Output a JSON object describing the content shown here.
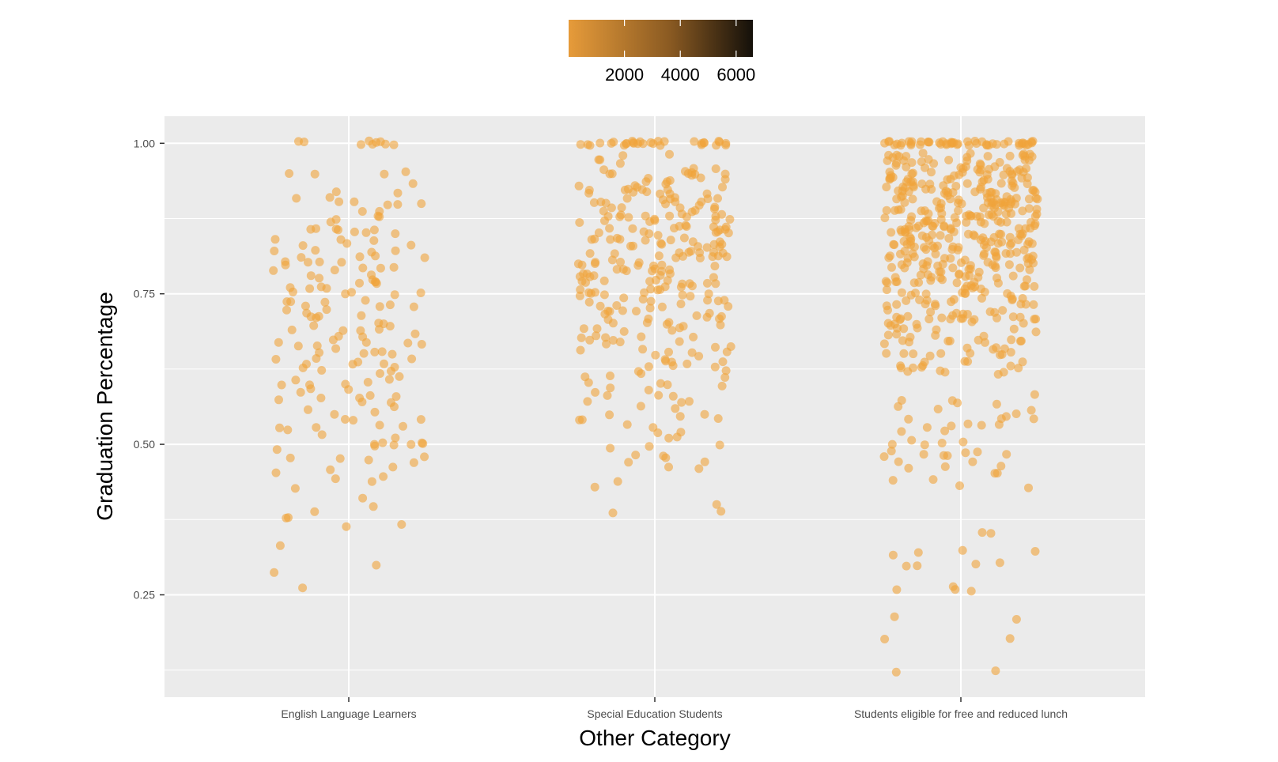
{
  "chart_data": {
    "type": "scatter",
    "subtype": "jitter-strip",
    "xlabel": "Other Category",
    "ylabel": "Graduation Percentage",
    "categories": [
      "English Language Learners",
      "Special Education Students",
      "Students eligible for free and reduced lunch"
    ],
    "y_ticks": [
      0.25,
      0.5,
      0.75,
      1.0
    ],
    "y_tick_labels": [
      "0.25",
      "0.50",
      "0.75",
      "1.00"
    ],
    "ylim": [
      0.08,
      1.045
    ],
    "grid": true,
    "panel_background": "#ebebeb",
    "point_color": "#f0a43a",
    "point_opacity": 0.6,
    "legend": {
      "type": "colorbar",
      "position": "top",
      "ticks": [
        2000,
        4000,
        6000
      ],
      "tick_labels": [
        "2000",
        "4000",
        "6000"
      ],
      "range": [
        0,
        6600
      ],
      "low_color": "#e69b3a",
      "high_color": "#14100a"
    },
    "series": [
      {
        "category": "English Language Learners",
        "y": [
          1.0,
          1.0,
          1.0,
          1.0,
          1.0,
          1.0,
          1.0,
          1.0,
          1.0,
          0.95,
          0.95,
          0.95,
          0.95,
          0.93,
          0.92,
          0.92,
          0.91,
          0.91,
          0.9,
          0.9,
          0.9,
          0.9,
          0.9,
          0.89,
          0.89,
          0.88,
          0.88,
          0.87,
          0.87,
          0.86,
          0.86,
          0.86,
          0.86,
          0.86,
          0.85,
          0.85,
          0.85,
          0.84,
          0.84,
          0.84,
          0.83,
          0.83,
          0.83,
          0.82,
          0.82,
          0.82,
          0.82,
          0.81,
          0.81,
          0.81,
          0.81,
          0.8,
          0.8,
          0.8,
          0.8,
          0.8,
          0.79,
          0.79,
          0.79,
          0.79,
          0.79,
          0.78,
          0.78,
          0.78,
          0.77,
          0.77,
          0.77,
          0.77,
          0.77,
          0.76,
          0.76,
          0.76,
          0.76,
          0.75,
          0.75,
          0.75,
          0.75,
          0.75,
          0.74,
          0.74,
          0.74,
          0.74,
          0.73,
          0.73,
          0.73,
          0.73,
          0.72,
          0.72,
          0.72,
          0.71,
          0.71,
          0.71,
          0.71,
          0.7,
          0.7,
          0.7,
          0.7,
          0.69,
          0.69,
          0.69,
          0.69,
          0.68,
          0.68,
          0.68,
          0.67,
          0.67,
          0.67,
          0.67,
          0.67,
          0.66,
          0.66,
          0.66,
          0.65,
          0.65,
          0.65,
          0.65,
          0.65,
          0.64,
          0.64,
          0.64,
          0.64,
          0.63,
          0.63,
          0.63,
          0.63,
          0.63,
          0.62,
          0.62,
          0.62,
          0.61,
          0.61,
          0.61,
          0.6,
          0.6,
          0.6,
          0.6,
          0.59,
          0.59,
          0.59,
          0.58,
          0.58,
          0.58,
          0.58,
          0.57,
          0.57,
          0.57,
          0.56,
          0.56,
          0.55,
          0.55,
          0.54,
          0.54,
          0.54,
          0.53,
          0.53,
          0.53,
          0.53,
          0.52,
          0.52,
          0.51,
          0.5,
          0.5,
          0.5,
          0.5,
          0.5,
          0.5,
          0.5,
          0.49,
          0.48,
          0.48,
          0.48,
          0.47,
          0.47,
          0.46,
          0.46,
          0.45,
          0.45,
          0.44,
          0.44,
          0.43,
          0.41,
          0.4,
          0.39,
          0.38,
          0.38,
          0.37,
          0.36,
          0.33,
          0.3,
          0.29,
          0.26
        ]
      },
      {
        "category": "Special Education Students",
        "y": [
          1.0,
          1.0,
          1.0,
          1.0,
          1.0,
          1.0,
          1.0,
          1.0,
          1.0,
          1.0,
          1.0,
          1.0,
          1.0,
          1.0,
          1.0,
          1.0,
          1.0,
          1.0,
          1.0,
          1.0,
          1.0,
          1.0,
          1.0,
          1.0,
          1.0,
          1.0,
          1.0,
          1.0,
          1.0,
          1.0,
          0.98,
          0.98,
          0.97,
          0.97,
          0.97,
          0.96,
          0.96,
          0.96,
          0.95,
          0.95,
          0.95,
          0.95,
          0.95,
          0.95,
          0.95,
          0.95,
          0.94,
          0.94,
          0.94,
          0.94,
          0.94,
          0.94,
          0.93,
          0.93,
          0.93,
          0.93,
          0.93,
          0.92,
          0.92,
          0.92,
          0.92,
          0.92,
          0.92,
          0.92,
          0.92,
          0.92,
          0.92,
          0.92,
          0.91,
          0.91,
          0.91,
          0.91,
          0.91,
          0.91,
          0.9,
          0.9,
          0.9,
          0.9,
          0.9,
          0.9,
          0.9,
          0.89,
          0.89,
          0.89,
          0.89,
          0.89,
          0.89,
          0.89,
          0.89,
          0.88,
          0.88,
          0.88,
          0.88,
          0.88,
          0.88,
          0.88,
          0.88,
          0.88,
          0.88,
          0.87,
          0.87,
          0.87,
          0.87,
          0.87,
          0.87,
          0.87,
          0.86,
          0.86,
          0.86,
          0.86,
          0.86,
          0.86,
          0.86,
          0.86,
          0.86,
          0.86,
          0.85,
          0.85,
          0.85,
          0.85,
          0.85,
          0.85,
          0.85,
          0.84,
          0.84,
          0.84,
          0.84,
          0.84,
          0.84,
          0.84,
          0.84,
          0.84,
          0.84,
          0.83,
          0.83,
          0.83,
          0.83,
          0.83,
          0.83,
          0.83,
          0.83,
          0.83,
          0.82,
          0.82,
          0.82,
          0.82,
          0.82,
          0.82,
          0.82,
          0.82,
          0.81,
          0.81,
          0.81,
          0.81,
          0.81,
          0.81,
          0.81,
          0.81,
          0.8,
          0.8,
          0.8,
          0.8,
          0.8,
          0.8,
          0.8,
          0.8,
          0.8,
          0.8,
          0.79,
          0.79,
          0.79,
          0.79,
          0.79,
          0.79,
          0.79,
          0.78,
          0.78,
          0.78,
          0.78,
          0.78,
          0.78,
          0.78,
          0.78,
          0.77,
          0.77,
          0.77,
          0.77,
          0.77,
          0.77,
          0.77,
          0.77,
          0.77,
          0.77,
          0.76,
          0.76,
          0.76,
          0.76,
          0.76,
          0.76,
          0.76,
          0.75,
          0.75,
          0.75,
          0.75,
          0.75,
          0.75,
          0.75,
          0.75,
          0.75,
          0.74,
          0.74,
          0.74,
          0.74,
          0.74,
          0.74,
          0.74,
          0.73,
          0.73,
          0.73,
          0.73,
          0.73,
          0.73,
          0.72,
          0.72,
          0.72,
          0.72,
          0.72,
          0.72,
          0.71,
          0.71,
          0.71,
          0.71,
          0.71,
          0.71,
          0.7,
          0.7,
          0.7,
          0.7,
          0.7,
          0.7,
          0.69,
          0.69,
          0.69,
          0.69,
          0.69,
          0.68,
          0.68,
          0.68,
          0.68,
          0.68,
          0.67,
          0.67,
          0.67,
          0.67,
          0.67,
          0.66,
          0.66,
          0.66,
          0.66,
          0.65,
          0.65,
          0.65,
          0.65,
          0.65,
          0.64,
          0.64,
          0.64,
          0.64,
          0.63,
          0.63,
          0.63,
          0.63,
          0.62,
          0.62,
          0.62,
          0.61,
          0.61,
          0.61,
          0.6,
          0.6,
          0.6,
          0.6,
          0.59,
          0.59,
          0.59,
          0.58,
          0.58,
          0.58,
          0.57,
          0.57,
          0.57,
          0.56,
          0.56,
          0.55,
          0.55,
          0.55,
          0.54,
          0.54,
          0.54,
          0.53,
          0.53,
          0.52,
          0.52,
          0.51,
          0.51,
          0.5,
          0.5,
          0.49,
          0.48,
          0.48,
          0.48,
          0.47,
          0.47,
          0.46,
          0.46,
          0.44,
          0.43,
          0.4,
          0.39,
          0.39
        ]
      },
      {
        "category": "Students eligible for free and reduced lunch",
        "y": [
          1.0,
          1.0,
          1.0,
          1.0,
          1.0,
          1.0,
          1.0,
          1.0,
          1.0,
          1.0,
          1.0,
          1.0,
          1.0,
          1.0,
          1.0,
          1.0,
          1.0,
          1.0,
          1.0,
          1.0,
          1.0,
          1.0,
          1.0,
          1.0,
          1.0,
          1.0,
          1.0,
          1.0,
          1.0,
          1.0,
          1.0,
          1.0,
          1.0,
          1.0,
          1.0,
          1.0,
          1.0,
          1.0,
          1.0,
          1.0,
          1.0,
          1.0,
          1.0,
          1.0,
          1.0,
          1.0,
          1.0,
          1.0,
          1.0,
          1.0,
          0.98,
          0.98,
          0.98,
          0.98,
          0.98,
          0.98,
          0.98,
          0.98,
          0.98,
          0.98,
          0.98,
          0.98,
          0.98,
          0.98,
          0.98,
          0.97,
          0.97,
          0.97,
          0.97,
          0.97,
          0.97,
          0.97,
          0.97,
          0.97,
          0.97,
          0.97,
          0.97,
          0.97,
          0.96,
          0.96,
          0.96,
          0.96,
          0.96,
          0.96,
          0.96,
          0.96,
          0.96,
          0.96,
          0.96,
          0.96,
          0.96,
          0.96,
          0.95,
          0.95,
          0.95,
          0.95,
          0.95,
          0.95,
          0.95,
          0.95,
          0.95,
          0.95,
          0.95,
          0.95,
          0.95,
          0.95,
          0.95,
          0.95,
          0.94,
          0.94,
          0.94,
          0.94,
          0.94,
          0.94,
          0.94,
          0.94,
          0.94,
          0.94,
          0.94,
          0.94,
          0.94,
          0.94,
          0.94,
          0.94,
          0.93,
          0.93,
          0.93,
          0.93,
          0.93,
          0.93,
          0.93,
          0.93,
          0.93,
          0.93,
          0.93,
          0.93,
          0.93,
          0.93,
          0.93,
          0.93,
          0.92,
          0.92,
          0.92,
          0.92,
          0.92,
          0.92,
          0.92,
          0.92,
          0.92,
          0.92,
          0.92,
          0.92,
          0.92,
          0.92,
          0.92,
          0.92,
          0.92,
          0.92,
          0.91,
          0.91,
          0.91,
          0.91,
          0.91,
          0.91,
          0.91,
          0.91,
          0.91,
          0.91,
          0.91,
          0.91,
          0.91,
          0.91,
          0.91,
          0.91,
          0.9,
          0.9,
          0.9,
          0.9,
          0.9,
          0.9,
          0.9,
          0.9,
          0.9,
          0.9,
          0.9,
          0.9,
          0.9,
          0.9,
          0.9,
          0.9,
          0.9,
          0.9,
          0.89,
          0.89,
          0.89,
          0.89,
          0.89,
          0.89,
          0.89,
          0.89,
          0.89,
          0.89,
          0.89,
          0.89,
          0.89,
          0.89,
          0.89,
          0.89,
          0.88,
          0.88,
          0.88,
          0.88,
          0.88,
          0.88,
          0.88,
          0.88,
          0.88,
          0.88,
          0.88,
          0.88,
          0.88,
          0.88,
          0.88,
          0.88,
          0.88,
          0.88,
          0.87,
          0.87,
          0.87,
          0.87,
          0.87,
          0.87,
          0.87,
          0.87,
          0.87,
          0.87,
          0.87,
          0.87,
          0.87,
          0.87,
          0.87,
          0.87,
          0.86,
          0.86,
          0.86,
          0.86,
          0.86,
          0.86,
          0.86,
          0.86,
          0.86,
          0.86,
          0.86,
          0.86,
          0.86,
          0.86,
          0.86,
          0.86,
          0.85,
          0.85,
          0.85,
          0.85,
          0.85,
          0.85,
          0.85,
          0.85,
          0.85,
          0.85,
          0.85,
          0.85,
          0.85,
          0.85,
          0.85,
          0.85,
          0.84,
          0.84,
          0.84,
          0.84,
          0.84,
          0.84,
          0.84,
          0.84,
          0.84,
          0.84,
          0.84,
          0.84,
          0.84,
          0.84,
          0.84,
          0.84,
          0.83,
          0.83,
          0.83,
          0.83,
          0.83,
          0.83,
          0.83,
          0.83,
          0.83,
          0.83,
          0.83,
          0.83,
          0.83,
          0.83,
          0.83,
          0.83,
          0.83,
          0.83,
          0.82,
          0.82,
          0.82,
          0.82,
          0.82,
          0.82,
          0.82,
          0.82,
          0.82,
          0.82,
          0.82,
          0.82,
          0.82,
          0.82,
          0.81,
          0.81,
          0.81,
          0.81,
          0.81,
          0.81,
          0.81,
          0.81,
          0.81,
          0.81,
          0.81,
          0.81,
          0.81,
          0.81,
          0.8,
          0.8,
          0.8,
          0.8,
          0.8,
          0.8,
          0.8,
          0.8,
          0.8,
          0.8,
          0.8,
          0.8,
          0.8,
          0.8,
          0.8,
          0.79,
          0.79,
          0.79,
          0.79,
          0.79,
          0.79,
          0.79,
          0.79,
          0.79,
          0.79,
          0.79,
          0.79,
          0.78,
          0.78,
          0.78,
          0.78,
          0.78,
          0.78,
          0.78,
          0.78,
          0.78,
          0.78,
          0.78,
          0.78,
          0.77,
          0.77,
          0.77,
          0.77,
          0.77,
          0.77,
          0.77,
          0.77,
          0.77,
          0.77,
          0.77,
          0.77,
          0.76,
          0.76,
          0.76,
          0.76,
          0.76,
          0.76,
          0.76,
          0.76,
          0.76,
          0.76,
          0.75,
          0.75,
          0.75,
          0.75,
          0.75,
          0.75,
          0.75,
          0.75,
          0.75,
          0.75,
          0.74,
          0.74,
          0.74,
          0.74,
          0.74,
          0.74,
          0.74,
          0.74,
          0.74,
          0.73,
          0.73,
          0.73,
          0.73,
          0.73,
          0.73,
          0.73,
          0.73,
          0.72,
          0.72,
          0.72,
          0.72,
          0.72,
          0.72,
          0.72,
          0.72,
          0.71,
          0.71,
          0.71,
          0.71,
          0.71,
          0.71,
          0.71,
          0.71,
          0.71,
          0.71,
          0.71,
          0.71,
          0.71,
          0.71,
          0.71,
          0.71,
          0.7,
          0.7,
          0.7,
          0.7,
          0.7,
          0.7,
          0.69,
          0.69,
          0.69,
          0.69,
          0.69,
          0.69,
          0.68,
          0.68,
          0.68,
          0.68,
          0.68,
          0.67,
          0.67,
          0.67,
          0.67,
          0.67,
          0.67,
          0.67,
          0.67,
          0.67,
          0.67,
          0.66,
          0.66,
          0.66,
          0.66,
          0.65,
          0.65,
          0.65,
          0.65,
          0.65,
          0.65,
          0.65,
          0.65,
          0.65,
          0.64,
          0.64,
          0.64,
          0.64,
          0.63,
          0.63,
          0.63,
          0.63,
          0.63,
          0.63,
          0.63,
          0.62,
          0.62,
          0.62,
          0.62,
          0.62,
          0.58,
          0.57,
          0.57,
          0.57,
          0.57,
          0.56,
          0.56,
          0.56,
          0.55,
          0.55,
          0.54,
          0.54,
          0.54,
          0.53,
          0.53,
          0.53,
          0.53,
          0.53,
          0.52,
          0.52,
          0.51,
          0.5,
          0.5,
          0.5,
          0.5,
          0.49,
          0.49,
          0.49,
          0.48,
          0.48,
          0.48,
          0.48,
          0.48,
          0.47,
          0.47,
          0.46,
          0.46,
          0.46,
          0.45,
          0.45,
          0.44,
          0.44,
          0.43,
          0.43,
          0.35,
          0.35,
          0.32,
          0.32,
          0.32,
          0.32,
          0.3,
          0.3,
          0.3,
          0.3,
          0.26,
          0.26,
          0.26,
          0.26,
          0.21,
          0.21,
          0.18,
          0.18,
          0.12,
          0.12
        ]
      }
    ]
  }
}
